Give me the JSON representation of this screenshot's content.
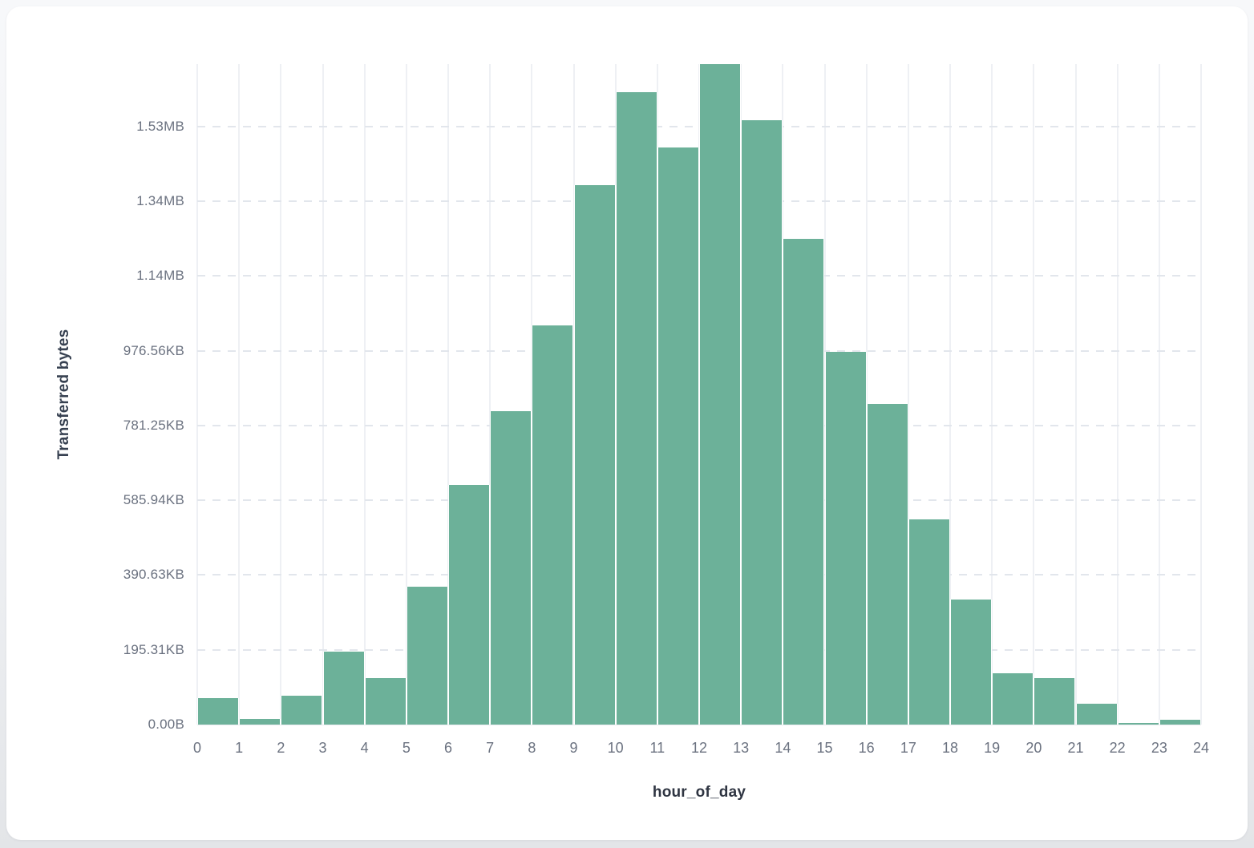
{
  "chart_data": {
    "type": "bar",
    "title": "",
    "xlabel": "hour_of_day",
    "ylabel": "Transferred bytes",
    "categories": [
      0,
      1,
      2,
      3,
      4,
      5,
      6,
      7,
      8,
      9,
      10,
      11,
      12,
      13,
      14,
      15,
      16,
      17,
      18,
      19,
      20,
      21,
      22,
      23
    ],
    "values": [
      71000,
      15000,
      77000,
      196000,
      125000,
      369000,
      642000,
      839000,
      1069000,
      1444000,
      1691000,
      1545000,
      1766000,
      1616000,
      1299000,
      998000,
      858000,
      549000,
      334000,
      137000,
      125000,
      56000,
      5000,
      12000
    ],
    "values_unit": "bytes",
    "x_ticks": [
      "0",
      "1",
      "2",
      "3",
      "4",
      "5",
      "6",
      "7",
      "8",
      "9",
      "10",
      "11",
      "12",
      "13",
      "14",
      "15",
      "16",
      "17",
      "18",
      "19",
      "20",
      "21",
      "22",
      "23",
      "24"
    ],
    "y_ticks": [
      {
        "label": "0.00B",
        "bytes": 0
      },
      {
        "label": "195.31KB",
        "bytes": 200000
      },
      {
        "label": "390.63KB",
        "bytes": 400000
      },
      {
        "label": "585.94KB",
        "bytes": 600000
      },
      {
        "label": "781.25KB",
        "bytes": 800000
      },
      {
        "label": "976.56KB",
        "bytes": 1000000
      },
      {
        "label": "1.14MB",
        "bytes": 1200000
      },
      {
        "label": "1.34MB",
        "bytes": 1400000
      },
      {
        "label": "1.53MB",
        "bytes": 1600000
      }
    ],
    "xlim": [
      0,
      24
    ],
    "ylim": [
      0,
      1767000
    ],
    "grid": true,
    "legend": false,
    "bar_color": "#6cb199",
    "grid_vline_color": "#eef0f4",
    "grid_hline_color": "#e2e6ec",
    "tick_label_color": "#6b7280",
    "axis_title_color": "#374151",
    "card_background": "#ffffff",
    "page_background": "#e9ebee"
  }
}
